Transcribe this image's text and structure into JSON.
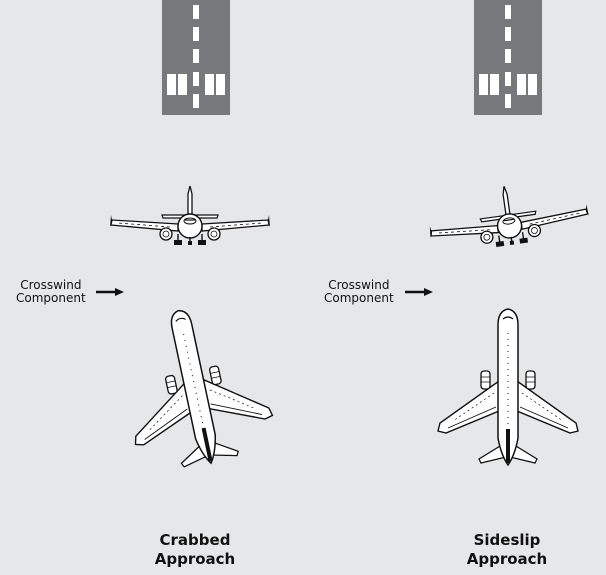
{
  "colors": {
    "background": "#e6e7e8",
    "runway": "#77787b",
    "marking": "#ffffff",
    "aircraft_fill": "#ffffff",
    "aircraft_line": "#111111"
  },
  "panels": [
    {
      "id": "crabbed",
      "wind_label_line1": "Crosswind",
      "wind_label_line2": "Component",
      "caption_line1": "Crabbed",
      "caption_line2": "Approach"
    },
    {
      "id": "sideslip",
      "wind_label_line1": "Crosswind",
      "wind_label_line2": "Component",
      "caption_line1": "Sideslip",
      "caption_line2": "Approach"
    }
  ]
}
